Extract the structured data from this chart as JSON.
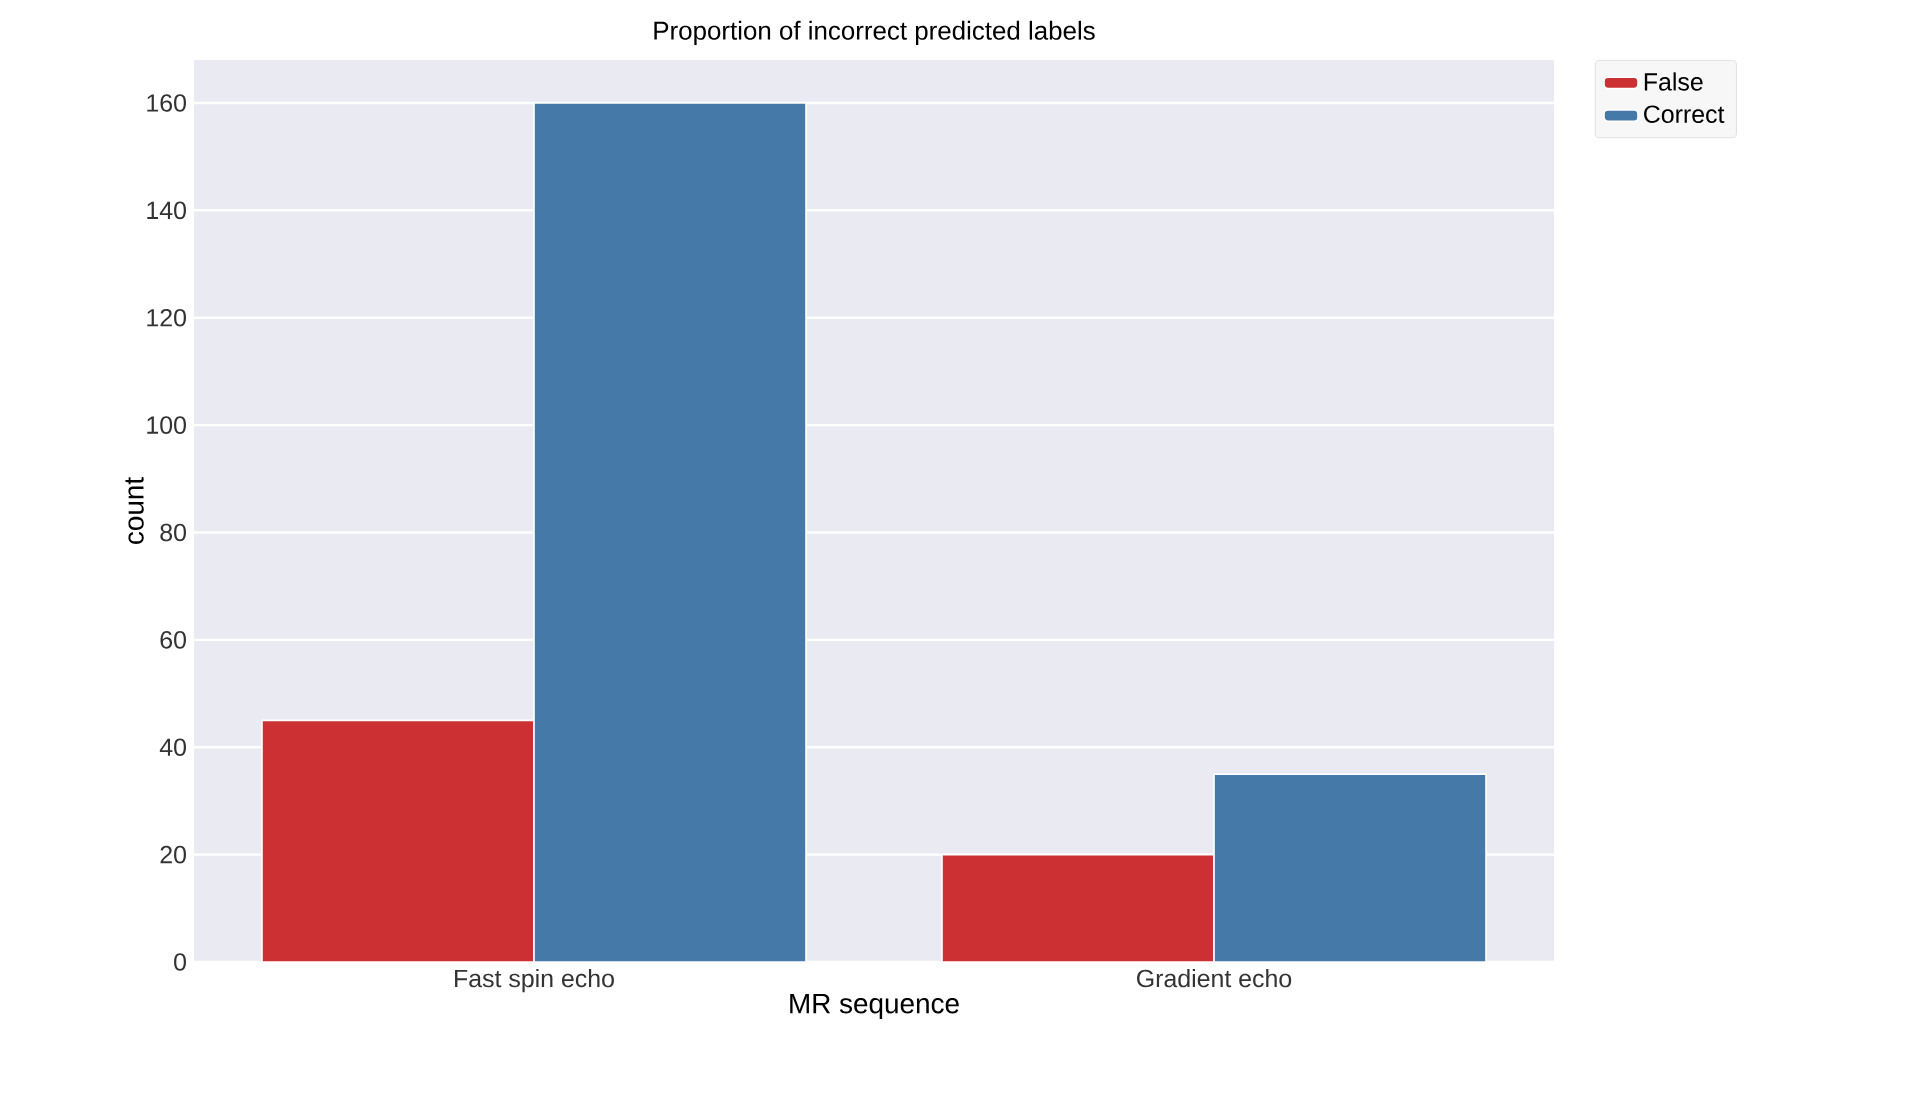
{
  "chart_data": {
    "type": "bar",
    "title": "Proportion of incorrect predicted labels",
    "xlabel": "MR sequence",
    "ylabel": "count",
    "categories": [
      "Fast spin echo",
      "Gradient echo"
    ],
    "series": [
      {
        "name": "False",
        "color": "#cc3033",
        "values": [
          45,
          20
        ]
      },
      {
        "name": "Correct",
        "color": "#4479a8",
        "values": [
          160,
          35
        ]
      }
    ],
    "ylim": [
      0,
      168
    ],
    "yticks": [
      0,
      20,
      40,
      60,
      80,
      100,
      120,
      140,
      160
    ],
    "grid": "y",
    "legend": "top right"
  }
}
